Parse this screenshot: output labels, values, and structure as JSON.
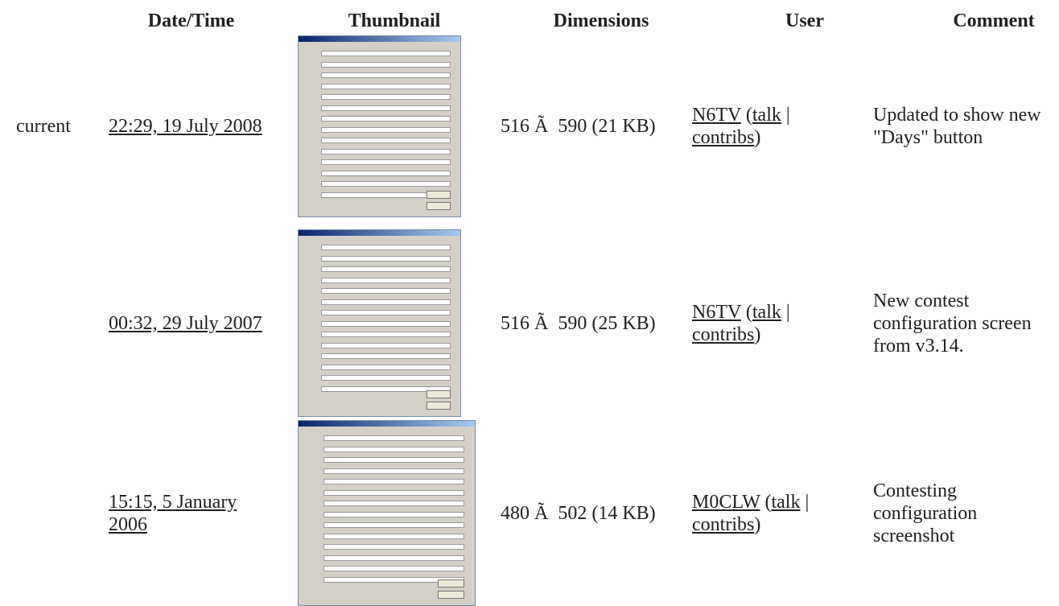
{
  "header": {
    "columns": [
      "Date/Time",
      "Thumbnail",
      "Dimensions",
      "User",
      "Comment"
    ]
  },
  "rows": [
    {
      "status": "current",
      "datetime": "22:29, 19 July 2008",
      "dimensions": "516 Ã  590 (21 KB)",
      "user": "N6TV",
      "user_open": "(",
      "talk": "talk",
      "user_sep": "|",
      "contribs": "contribs",
      "user_close": ")",
      "comment": "Updated to show new \"Days\" button"
    },
    {
      "datetime": "00:32, 29 July 2007",
      "dimensions": "516 Ã  590 (25 KB)",
      "user": "N6TV",
      "user_open": "(",
      "talk": "talk",
      "user_sep": "|",
      "contribs": "contribs",
      "user_close": ")",
      "comment": "New contest configuration screen from v3.14."
    },
    {
      "datetime": "15:15, 5 January 2006",
      "dimensions": "480 Ã  502 (14 KB)",
      "user": "M0CLW",
      "user_open": "(",
      "talk": "talk",
      "user_sep": "|",
      "contribs": "contribs",
      "user_close": ")",
      "comment": "Contesting configuration screenshot"
    }
  ]
}
